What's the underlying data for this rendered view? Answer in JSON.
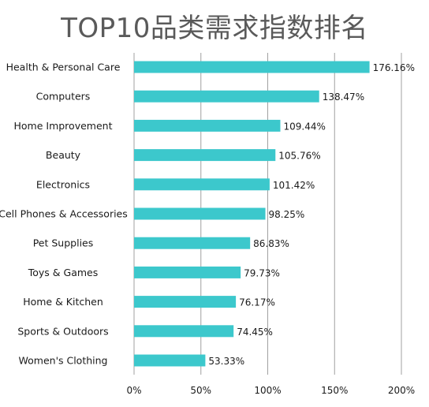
{
  "chart_data": {
    "type": "bar",
    "orientation": "horizontal",
    "title": "TOP10品类需求指数排名",
    "categories": [
      "Health & Personal Care",
      "Computers",
      "Home Improvement",
      "Beauty",
      "Electronics",
      "Cell Phones & Accessories",
      "Pet Supplies",
      "Toys & Games",
      "Home & Kitchen",
      "Sports & Outdoors",
      "Women's Clothing"
    ],
    "values": [
      176.16,
      138.47,
      109.44,
      105.76,
      101.42,
      98.25,
      86.83,
      79.73,
      76.17,
      74.45,
      53.33
    ],
    "value_labels": [
      "176.16%",
      "138.47%",
      "109.44%",
      "105.76%",
      "101.42%",
      "98.25%",
      "86.83%",
      "79.73%",
      "76.17%",
      "74.45%",
      "53.33%"
    ],
    "xlim": [
      0,
      200
    ],
    "xticks": [
      0,
      50,
      100,
      150,
      200
    ],
    "xtick_labels": [
      "0%",
      "50%",
      "100%",
      "150%",
      "200%"
    ],
    "xlabel": "",
    "ylabel": "",
    "grid": "vertical",
    "legend": "none",
    "bar_color": "#3cc8cc",
    "grid_color": "#a0a0a0"
  }
}
